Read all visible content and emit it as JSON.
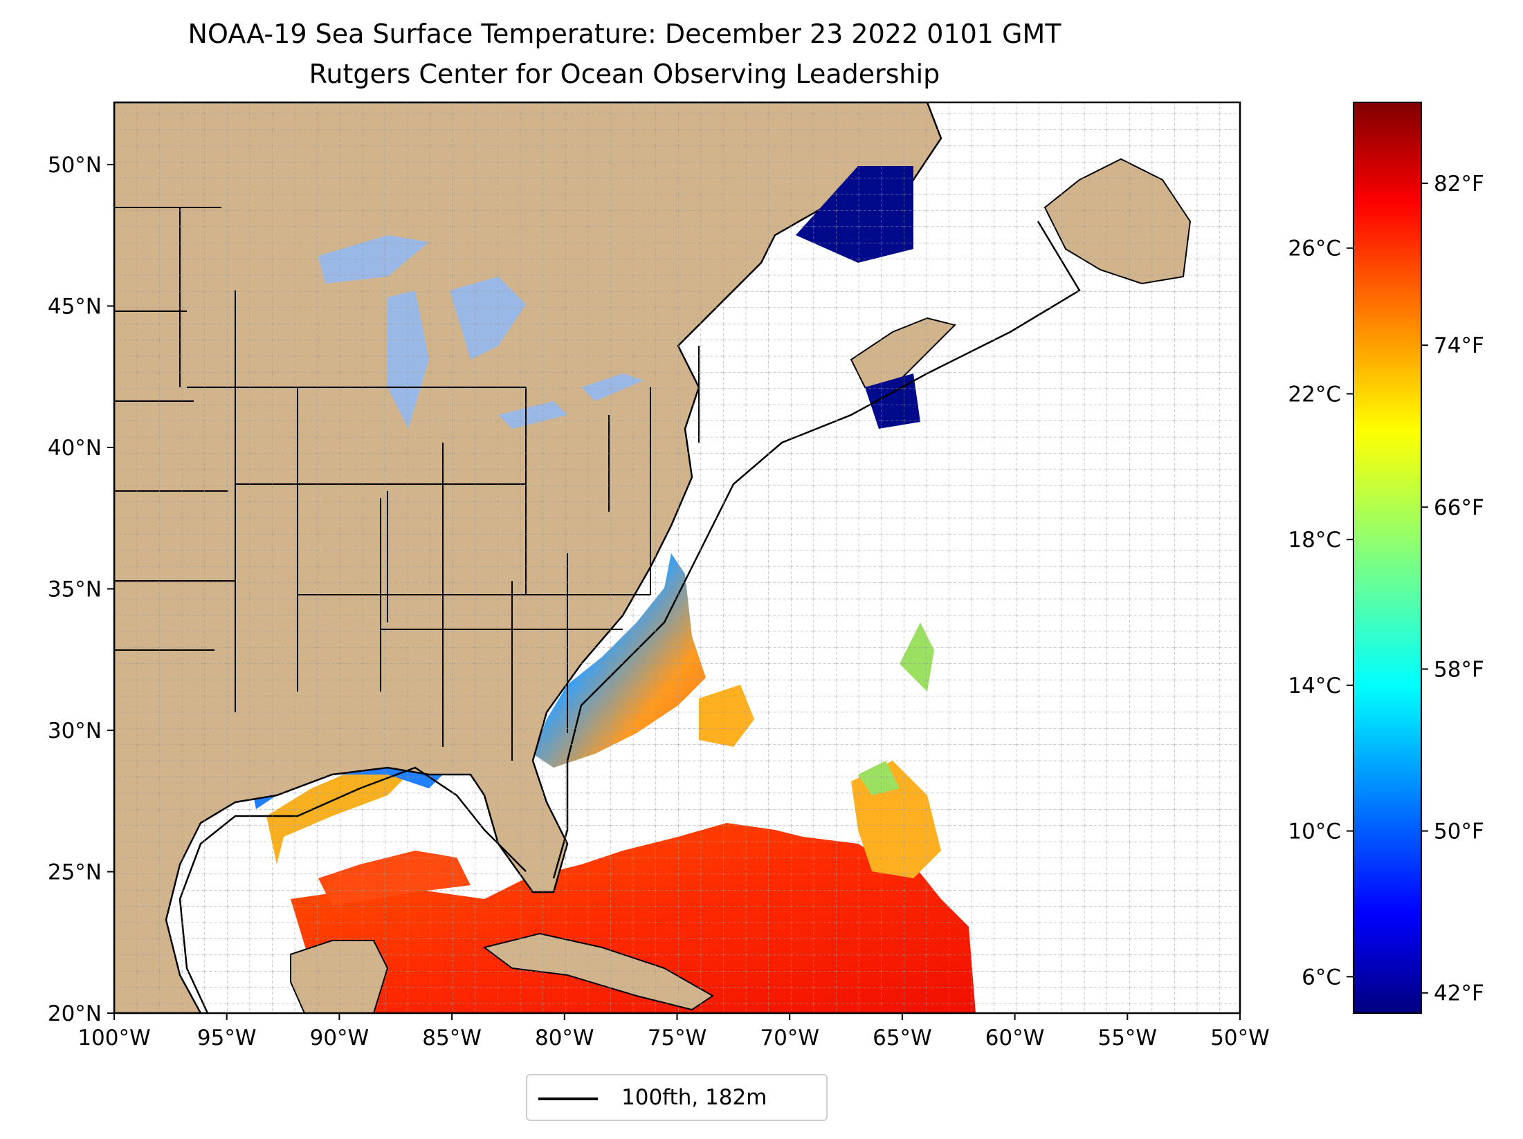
{
  "title": "NOAA-19 Sea Surface Temperature: December 23 2022 0101 GMT",
  "subtitle": "Rutgers Center for Ocean Observing Leadership",
  "map": {
    "lon_range": [
      -100,
      -50
    ],
    "lat_range": [
      20,
      52.2
    ],
    "lon_ticks": [
      "100°W",
      "95°W",
      "90°W",
      "85°W",
      "80°W",
      "75°W",
      "70°W",
      "65°W",
      "60°W",
      "55°W",
      "50°W"
    ],
    "lat_ticks": [
      "20°N",
      "25°N",
      "30°N",
      "35°N",
      "40°N",
      "45°N",
      "50°N"
    ],
    "gridlines": true,
    "colors": {
      "land": "#d2b48c",
      "lakes": "#9ab8e6",
      "ocean_no_data": "#ffffff",
      "coast": "#000000"
    }
  },
  "colorbar": {
    "colormap": "jet",
    "range_celsius": [
      5,
      30
    ],
    "celsius_ticks": [
      "6°C",
      "10°C",
      "14°C",
      "18°C",
      "22°C",
      "26°C"
    ],
    "fahrenheit_ticks": [
      "42°F",
      "50°F",
      "58°F",
      "66°F",
      "74°F",
      "82°F"
    ]
  },
  "legend": {
    "label": "100fth, 182m",
    "line_color": "#000000"
  }
}
